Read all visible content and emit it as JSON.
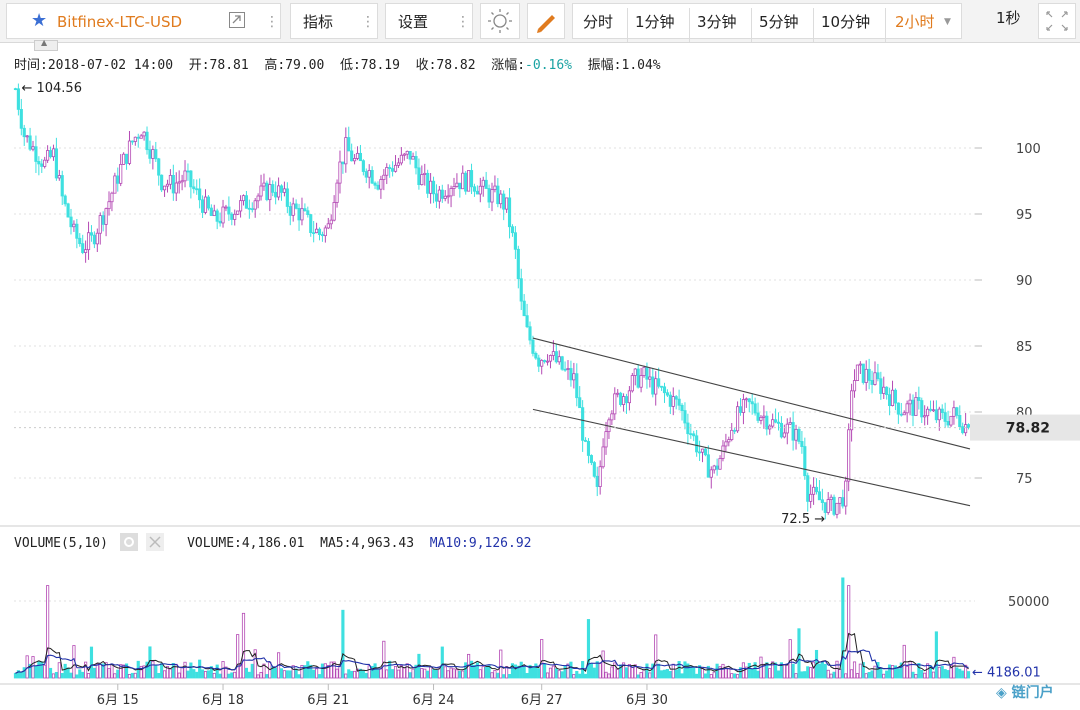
{
  "toolbar": {
    "symbol": "Bitfinex-LTC-USD",
    "indicators_label": "指标",
    "settings_label": "设置",
    "intervals": [
      "分时",
      "1分钟",
      "3分钟",
      "5分钟",
      "10分钟"
    ],
    "active_interval": "2小时",
    "refresh": "1秒",
    "star_color": "#3b6fd4",
    "active_color": "#e07b1e"
  },
  "info": {
    "time_label": "时间:",
    "time": "2018-07-02 14:00",
    "open_label": "开:",
    "open": "78.81",
    "high_label": "高:",
    "high": "79.00",
    "low_label": "低:",
    "low": "78.19",
    "close_label": "收:",
    "close": "78.82",
    "change_label": "涨幅:",
    "change": "-0.16%",
    "amplitude_label": "振幅:",
    "amplitude": "1.04%"
  },
  "volume_info": {
    "title": "VOLUME(5,10)",
    "volume_label": "VOLUME:",
    "volume": "4,186.01",
    "ma5_label": "MA5:",
    "ma5": "4,963.43",
    "ma10_label": "MA10:",
    "ma10": "9,126.92"
  },
  "chart_data": [
    {
      "type": "candlestick",
      "title": "Bitfinex-LTC-USD",
      "interval": "2h",
      "ylim": [
        72,
        106
      ],
      "yticks": [
        75,
        80,
        85,
        90,
        95,
        100
      ],
      "xticks": [
        "6月 15",
        "6月 18",
        "6月 21",
        "6月 24",
        "6月 27",
        "6月 30"
      ],
      "grid": true,
      "up_color": "#b449b4",
      "down_color": "#3ee0e0",
      "current_price": 78.82,
      "current_price_label": "78.82",
      "annotations": [
        {
          "text": "← 104.56",
          "value": 104.56,
          "kind": "max"
        },
        {
          "text": "72.5 →",
          "value": 72.5,
          "kind": "min"
        }
      ],
      "trend_channel": {
        "upper": [
          [
            85.6,
            77.2
          ]
        ],
        "lower": [
          [
            80.2,
            72.9
          ]
        ]
      },
      "waypoints": [
        [
          0,
          104.5
        ],
        [
          3,
          101
        ],
        [
          6,
          100
        ],
        [
          10,
          98.8
        ],
        [
          13,
          99.5
        ],
        [
          16,
          96.2
        ],
        [
          20,
          93.5
        ],
        [
          23,
          92.5
        ],
        [
          26,
          93
        ],
        [
          28,
          94
        ],
        [
          32,
          96
        ],
        [
          36,
          98.5
        ],
        [
          40,
          100.5
        ],
        [
          43,
          101.5
        ],
        [
          47,
          99.5
        ],
        [
          50,
          97.5
        ],
        [
          54,
          97.2
        ],
        [
          58,
          97.8
        ],
        [
          62,
          96.5
        ],
        [
          65,
          95.5
        ],
        [
          68,
          94.5
        ],
        [
          72,
          95
        ],
        [
          76,
          95.5
        ],
        [
          80,
          96
        ],
        [
          84,
          96.5
        ],
        [
          88,
          97
        ],
        [
          91,
          96.5
        ],
        [
          94,
          95.5
        ],
        [
          98,
          95
        ],
        [
          101,
          94
        ],
        [
          104,
          93.5
        ],
        [
          107,
          94
        ],
        [
          110,
          98
        ],
        [
          113,
          100
        ],
        [
          116,
          99
        ],
        [
          120,
          98.5
        ],
        [
          124,
          97.5
        ],
        [
          128,
          98.5
        ],
        [
          132,
          99
        ],
        [
          135,
          99.5
        ],
        [
          138,
          98
        ],
        [
          141,
          97
        ],
        [
          144,
          96.5
        ],
        [
          147,
          97
        ],
        [
          150,
          97.5
        ],
        [
          153,
          97.5
        ],
        [
          156,
          97.5
        ],
        [
          159,
          97
        ],
        [
          162,
          96.5
        ],
        [
          165,
          96.3
        ],
        [
          168,
          95.5
        ],
        [
          171,
          92
        ],
        [
          173,
          88
        ],
        [
          175,
          86
        ],
        [
          177,
          85
        ],
        [
          179,
          84
        ],
        [
          182,
          84.5
        ],
        [
          185,
          83.8
        ],
        [
          188,
          83
        ],
        [
          191,
          82.5
        ],
        [
          193,
          80
        ],
        [
          195,
          77
        ],
        [
          197,
          75.5
        ],
        [
          199,
          73.8
        ],
        [
          201,
          78
        ],
        [
          203,
          80.2
        ],
        [
          206,
          81
        ],
        [
          209,
          81.5
        ],
        [
          212,
          82.5
        ],
        [
          215,
          82.7
        ],
        [
          218,
          82
        ],
        [
          221,
          81.5
        ],
        [
          224,
          81
        ],
        [
          227,
          80.5
        ],
        [
          230,
          79
        ],
        [
          233,
          77.5
        ],
        [
          236,
          76
        ],
        [
          239,
          75.5
        ],
        [
          242,
          77
        ],
        [
          245,
          79
        ],
        [
          248,
          80
        ],
        [
          251,
          80.5
        ],
        [
          254,
          80
        ],
        [
          257,
          79.5
        ],
        [
          260,
          79
        ],
        [
          263,
          78.8
        ],
        [
          266,
          78.5
        ],
        [
          269,
          77.5
        ],
        [
          271,
          74
        ],
        [
          273,
          73.6
        ],
        [
          276,
          73.2
        ],
        [
          279,
          72.8
        ],
        [
          282,
          73.2
        ],
        [
          284,
          74
        ],
        [
          286,
          82
        ],
        [
          288,
          83
        ],
        [
          291,
          82.8
        ],
        [
          294,
          82.3
        ],
        [
          297,
          81.8
        ],
        [
          300,
          81
        ],
        [
          303,
          80.2
        ],
        [
          306,
          80.4
        ],
        [
          309,
          80.3
        ],
        [
          312,
          80
        ],
        [
          315,
          79.6
        ],
        [
          318,
          79.5
        ],
        [
          321,
          79.8
        ],
        [
          324,
          79.2
        ],
        [
          326,
          78.82
        ]
      ]
    },
    {
      "type": "volume_bar",
      "title": "VOLUME(5,10)",
      "ylim": [
        0,
        72000
      ],
      "yticks": [
        50000
      ],
      "last_value": 4186.01,
      "last_value_label": "4186.01",
      "ma5": 4963.43,
      "ma10": 9126.92,
      "ma5_color": "#222222",
      "ma10_color": "#2233aa",
      "spikes": [
        {
          "bar": 11,
          "value": 60000
        },
        {
          "bar": 78,
          "value": 42000
        },
        {
          "bar": 112,
          "value": 44000
        },
        {
          "bar": 180,
          "value": 25000
        },
        {
          "bar": 196,
          "value": 38000
        },
        {
          "bar": 219,
          "value": 28000
        },
        {
          "bar": 268,
          "value": 32000
        },
        {
          "bar": 283,
          "value": 65000
        },
        {
          "bar": 285,
          "value": 60000
        },
        {
          "bar": 315,
          "value": 30000
        }
      ]
    }
  ]
}
